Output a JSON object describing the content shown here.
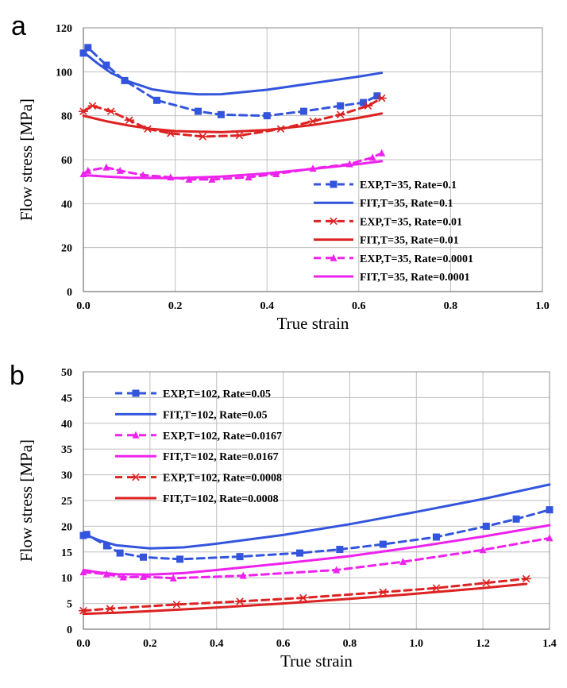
{
  "chart_data": [
    {
      "panel": "a",
      "type": "line",
      "xlabel": "True strain",
      "ylabel": "Flow stress [MPa]",
      "xlim": [
        0,
        1.0
      ],
      "ylim": [
        0,
        120
      ],
      "xticks": [
        "0.0",
        "0.2",
        "0.4",
        "0.6",
        "0.8",
        "1.0"
      ],
      "yticks": [
        "0",
        "20",
        "40",
        "60",
        "80",
        "100",
        "120"
      ],
      "grid": true,
      "legend_position": "bottom-right",
      "series": [
        {
          "name": "EXP,T=35, Rate=0.1",
          "color": "#3355dd",
          "style": "dashed",
          "marker": "square",
          "x": [
            0.0,
            0.01,
            0.05,
            0.09,
            0.16,
            0.25,
            0.3,
            0.4,
            0.48,
            0.56,
            0.61,
            0.64
          ],
          "y": [
            108.5,
            111,
            103,
            96,
            87,
            82,
            80.5,
            80,
            82,
            84.5,
            86,
            89
          ]
        },
        {
          "name": "FIT,T=35, Rate=0.1",
          "color": "#3355dd",
          "style": "solid",
          "marker": "none",
          "x": [
            0.0,
            0.03,
            0.06,
            0.1,
            0.15,
            0.2,
            0.25,
            0.3,
            0.4,
            0.5,
            0.6,
            0.65
          ],
          "y": [
            109,
            104,
            99.5,
            95.5,
            92,
            90.5,
            89.7,
            89.8,
            91.8,
            94.8,
            97.8,
            99.5
          ]
        },
        {
          "name": "EXP,T=35, Rate=0.01",
          "color": "#dd2222",
          "style": "dashed",
          "marker": "asterisk",
          "x": [
            0.0,
            0.02,
            0.06,
            0.1,
            0.14,
            0.19,
            0.26,
            0.34,
            0.43,
            0.5,
            0.56,
            0.62,
            0.65
          ],
          "y": [
            82,
            84.5,
            82,
            78,
            74,
            72,
            70.5,
            71,
            74,
            77.5,
            80.5,
            84.5,
            88
          ]
        },
        {
          "name": "FIT,T=35, Rate=0.01",
          "color": "#dd2222",
          "style": "solid",
          "marker": "none",
          "x": [
            0.0,
            0.05,
            0.1,
            0.15,
            0.2,
            0.3,
            0.4,
            0.5,
            0.6,
            0.65
          ],
          "y": [
            80,
            77.5,
            75.5,
            74,
            73,
            72.5,
            73.5,
            75.8,
            79,
            81
          ]
        },
        {
          "name": "EXP,T=35, Rate=0.0001",
          "color": "#ee22ee",
          "style": "dashed",
          "marker": "triangle",
          "x": [
            0.0,
            0.01,
            0.05,
            0.08,
            0.13,
            0.19,
            0.23,
            0.28,
            0.36,
            0.42,
            0.5,
            0.58,
            0.63,
            0.65
          ],
          "y": [
            53.5,
            55,
            56.5,
            55,
            53,
            52,
            51,
            51,
            52,
            53.5,
            56,
            58,
            61,
            63
          ]
        },
        {
          "name": "FIT,T=35, Rate=0.0001",
          "color": "#ee22ee",
          "style": "solid",
          "marker": "none",
          "x": [
            0.0,
            0.05,
            0.1,
            0.2,
            0.3,
            0.4,
            0.5,
            0.6,
            0.65
          ],
          "y": [
            53,
            52.3,
            51.8,
            51.6,
            52.3,
            53.8,
            55.8,
            58,
            59.3
          ]
        }
      ]
    },
    {
      "panel": "b",
      "type": "line",
      "xlabel": "True strain",
      "ylabel": "Flow stress [MPa]",
      "xlim": [
        0,
        1.4
      ],
      "ylim": [
        0,
        50
      ],
      "xticks": [
        "0.0",
        "0.2",
        "0.4",
        "0.6",
        "0.8",
        "1.0",
        "1.2",
        "1.4"
      ],
      "yticks": [
        "0",
        "5",
        "10",
        "15",
        "20",
        "25",
        "30",
        "35",
        "40",
        "45",
        "50"
      ],
      "grid": true,
      "legend_position": "top-left",
      "series": [
        {
          "name": "EXP,T=102, Rate=0.05",
          "color": "#3355dd",
          "style": "dashed",
          "marker": "square",
          "x": [
            0.0,
            0.01,
            0.07,
            0.11,
            0.18,
            0.29,
            0.47,
            0.65,
            0.77,
            0.9,
            1.06,
            1.21,
            1.3,
            1.4
          ],
          "y": [
            18.2,
            18.4,
            16.2,
            14.8,
            14.0,
            13.6,
            14.1,
            14.8,
            15.5,
            16.5,
            17.9,
            20.0,
            21.4,
            23.2
          ]
        },
        {
          "name": "FIT,T=102, Rate=0.05",
          "color": "#3355dd",
          "style": "solid",
          "marker": "none",
          "x": [
            0.0,
            0.05,
            0.1,
            0.2,
            0.3,
            0.4,
            0.6,
            0.8,
            1.0,
            1.2,
            1.4
          ],
          "y": [
            18.5,
            17.2,
            16.3,
            15.7,
            15.9,
            16.6,
            18.3,
            20.4,
            22.8,
            25.3,
            28.1
          ]
        },
        {
          "name": "EXP,T=102, Rate=0.0167",
          "color": "#ee22ee",
          "style": "dashed",
          "marker": "triangle",
          "x": [
            0.0,
            0.07,
            0.12,
            0.18,
            0.27,
            0.48,
            0.76,
            0.96,
            1.2,
            1.4
          ],
          "y": [
            11.1,
            10.7,
            10.1,
            10.2,
            9.9,
            10.4,
            11.5,
            13.1,
            15.4,
            17.7
          ]
        },
        {
          "name": "FIT,T=102, Rate=0.0167",
          "color": "#ee22ee",
          "style": "solid",
          "marker": "none",
          "x": [
            0.0,
            0.05,
            0.1,
            0.2,
            0.3,
            0.4,
            0.6,
            0.8,
            1.0,
            1.2,
            1.4
          ],
          "y": [
            11.5,
            11.0,
            10.7,
            10.6,
            10.9,
            11.5,
            12.8,
            14.2,
            16.0,
            18.0,
            20.2
          ]
        },
        {
          "name": "EXP,T=102, Rate=0.0008",
          "color": "#dd2222",
          "style": "dashed",
          "marker": "asterisk",
          "x": [
            0.0,
            0.08,
            0.28,
            0.47,
            0.66,
            0.9,
            1.06,
            1.21,
            1.33
          ],
          "y": [
            3.6,
            4.0,
            4.8,
            5.4,
            6.1,
            7.2,
            8.0,
            9.0,
            9.8
          ]
        },
        {
          "name": "FIT,T=102, Rate=0.0008",
          "color": "#dd2222",
          "style": "solid",
          "marker": "none",
          "x": [
            0.0,
            0.1,
            0.2,
            0.4,
            0.6,
            0.8,
            1.0,
            1.2,
            1.33
          ],
          "y": [
            3.0,
            3.2,
            3.5,
            4.2,
            5.0,
            5.9,
            6.9,
            8.0,
            8.8
          ]
        }
      ]
    }
  ]
}
